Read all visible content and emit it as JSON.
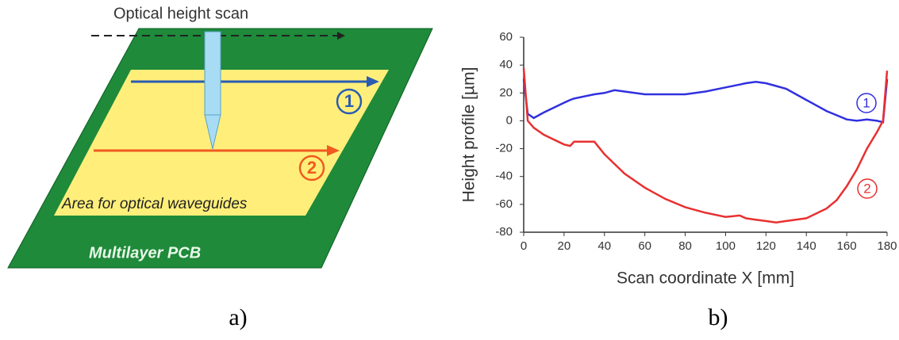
{
  "diagram": {
    "caption": "a)",
    "scan_label": "Optical height scan",
    "track_1": "1",
    "track_2": "2",
    "area_label": "Area for optical waveguides",
    "board_label": "Multilayer PCB"
  },
  "chart_data": {
    "type": "line",
    "caption": "b)",
    "xlabel": "Scan coordinate X  [mm]",
    "ylabel": "Height profile  [µm]",
    "x": [
      0,
      2,
      5,
      10,
      20,
      23,
      25,
      35,
      40,
      45,
      50,
      60,
      70,
      80,
      90,
      100,
      107,
      110,
      115,
      120,
      125,
      130,
      140,
      150,
      155,
      160,
      165,
      170,
      175,
      178,
      180
    ],
    "series": [
      {
        "name": "1",
        "color": "#3030e0",
        "values": [
          30,
          5,
          2,
          6,
          13,
          15,
          16,
          19,
          20,
          22,
          21,
          19,
          19,
          19,
          21,
          24,
          26,
          27,
          28,
          27,
          25,
          23,
          15,
          7,
          4,
          1,
          0,
          1,
          0,
          -1,
          30
        ]
      },
      {
        "name": "2",
        "color": "#e83030",
        "values": [
          38,
          0,
          -5,
          -10,
          -17,
          -18,
          -15,
          -15,
          -24,
          -31,
          -38,
          -48,
          -56,
          -62,
          -66,
          -69,
          -68,
          -70,
          -71,
          -72,
          -73,
          -72,
          -70,
          -63,
          -57,
          -47,
          -35,
          -20,
          -8,
          0,
          36
        ]
      }
    ],
    "xlim": [
      0,
      180
    ],
    "xticks": [
      0,
      20,
      40,
      60,
      80,
      100,
      120,
      140,
      160,
      180
    ],
    "ylim": [
      -80,
      60
    ],
    "yticks": [
      -80,
      -60,
      -40,
      -20,
      0,
      20,
      40,
      60
    ],
    "grid": false
  }
}
